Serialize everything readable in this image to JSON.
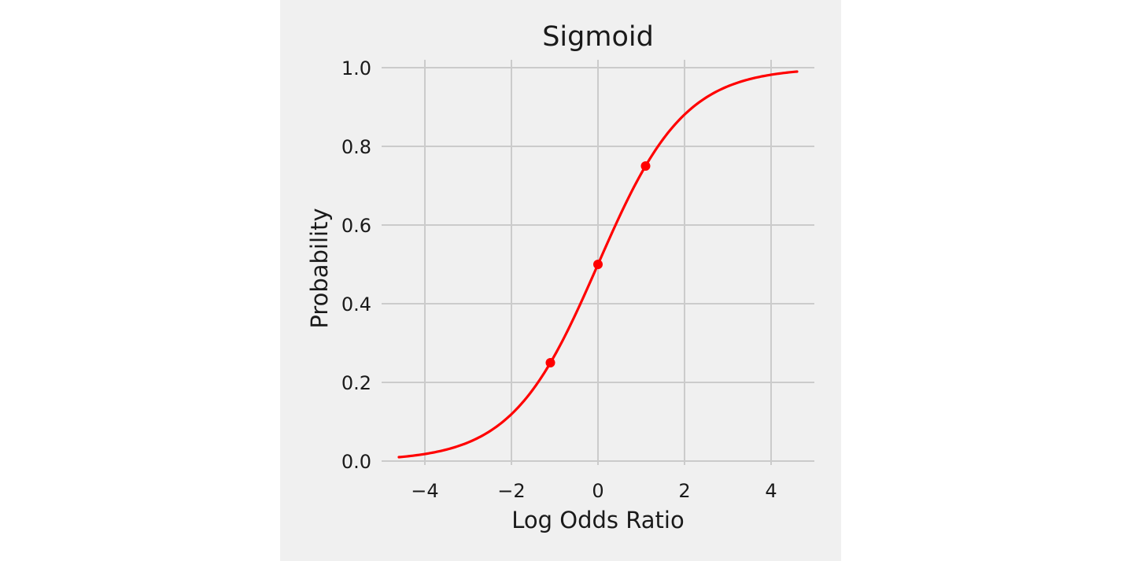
{
  "chart_data": {
    "type": "line",
    "title": "Sigmoid",
    "xlabel": "Log Odds Ratio",
    "ylabel": "Probability",
    "xlim": [
      -5,
      5
    ],
    "ylim": [
      -0.01,
      1.02
    ],
    "xticks": [
      -4,
      -2,
      0,
      2,
      4
    ],
    "xtick_labels": [
      "−4",
      "−2",
      "0",
      "2",
      "4"
    ],
    "yticks": [
      0.0,
      0.2,
      0.4,
      0.6,
      0.8,
      1.0
    ],
    "ytick_labels": [
      "0.0",
      "0.2",
      "0.4",
      "0.6",
      "0.8",
      "1.0"
    ],
    "grid": true,
    "series": [
      {
        "function": "sigmoid",
        "x_range": [
          -4.6,
          4.6
        ],
        "color": "#ff0000"
      }
    ],
    "points": [
      {
        "x": -1.1,
        "y": 0.25
      },
      {
        "x": 0,
        "y": 0.5
      },
      {
        "x": 1.1,
        "y": 0.75
      }
    ],
    "point_color": "#ff0000",
    "background": "#f0f0f0"
  }
}
